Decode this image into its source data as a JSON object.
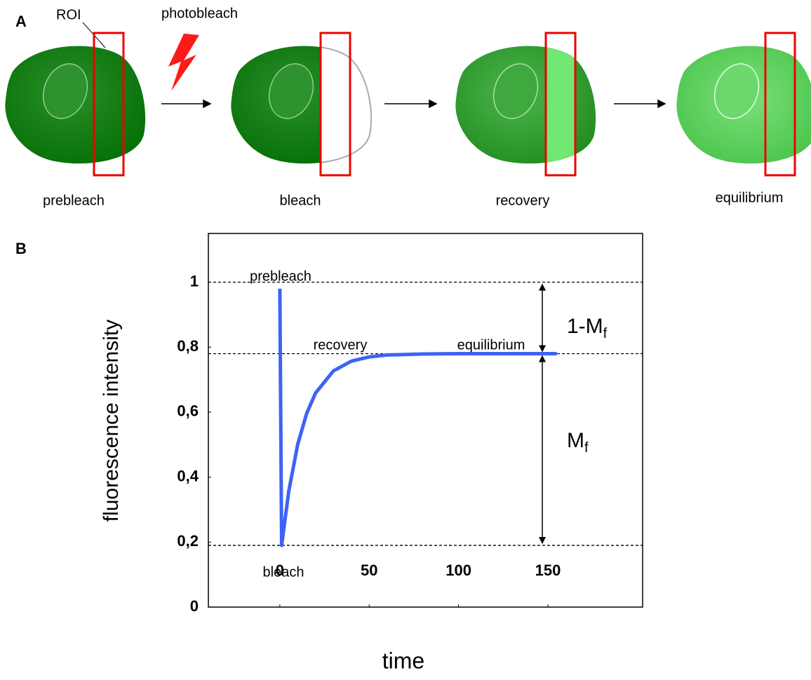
{
  "panel_a": {
    "label": "A",
    "roi_label": "ROI",
    "bleach_label": "photobleach",
    "stages": [
      "prebleach",
      "bleach",
      "recovery",
      "equilibrium"
    ]
  },
  "panel_b": {
    "label": "B"
  },
  "chart_data": {
    "type": "line",
    "x_label": "time",
    "y_label": "fluorescence intensity",
    "x": [
      0,
      1,
      5,
      10,
      15,
      20,
      30,
      40,
      50,
      60,
      80,
      100,
      120,
      140,
      155
    ],
    "series": [
      {
        "name": "fluorescence intensity",
        "color": "#3d63f5",
        "values": [
          0.98,
          0.19,
          0.357,
          0.501,
          0.596,
          0.659,
          0.727,
          0.757,
          0.77,
          0.776,
          0.779,
          0.78,
          0.78,
          0.78,
          0.78
        ]
      }
    ],
    "xlim": [
      -40,
      203
    ],
    "ylim": [
      0,
      1.15
    ],
    "xticks": [
      0,
      50,
      100,
      150
    ],
    "yticks": [
      0,
      {
        "value": 0.2,
        "label": "0,2"
      },
      {
        "value": 0.4,
        "label": "0,4"
      },
      {
        "value": 0.6,
        "label": "0,6"
      },
      {
        "value": 0.8,
        "label": "0,8"
      },
      1
    ],
    "reference_lines": [
      1,
      0.78,
      0.19
    ],
    "annotations": [
      "prebleach",
      "recovery",
      "equilibrium",
      "bleach"
    ],
    "interval_labels": [
      {
        "text": "1-M",
        "sub": "f"
      },
      {
        "text": "M",
        "sub": "f"
      }
    ]
  }
}
